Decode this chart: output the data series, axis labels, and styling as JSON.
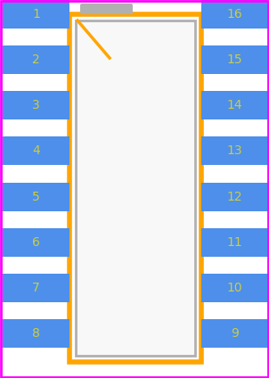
{
  "bg_color": "#ffffff",
  "border_color": "#ff00ff",
  "body_outline_color": "#ffa500",
  "body_fill_color": "#ffffff",
  "body_inner_outline_color": "#b0b0b0",
  "body_inner_fill_color": "#f8f8f8",
  "pin_color": "#4d8fea",
  "pin_label_color": "#cccc44",
  "corner_notch_line_color": "#ffa500",
  "silkscreen_color": "#b0b0b0",
  "n_pins_per_side": 8,
  "left_pins": [
    1,
    2,
    3,
    4,
    5,
    6,
    7,
    8
  ],
  "right_pins": [
    16,
    15,
    14,
    13,
    12,
    11,
    10,
    9
  ],
  "fig_width": 3.02,
  "fig_height": 4.24,
  "dpi": 100
}
